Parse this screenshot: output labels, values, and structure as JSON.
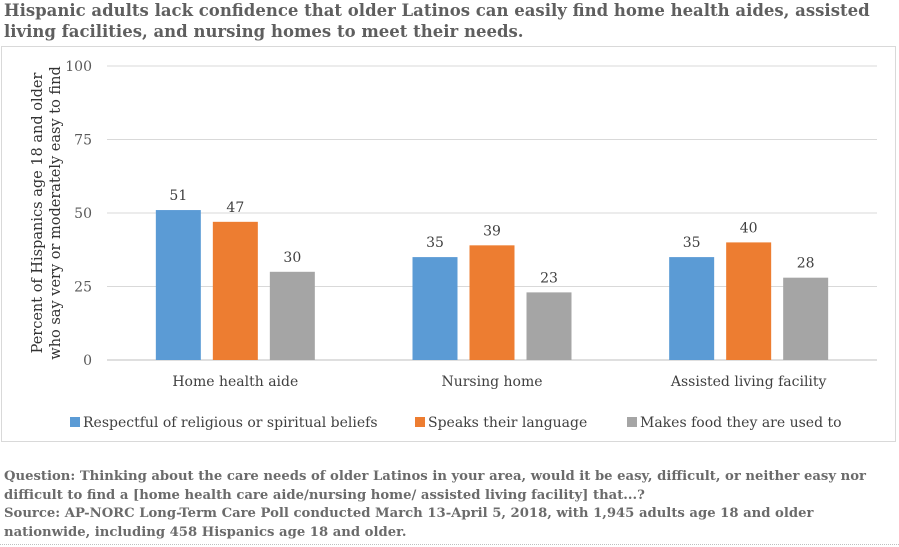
{
  "chart_data": {
    "type": "bar",
    "title": "Hispanic adults lack confidence that older Latinos can easily find home health aides, assisted living facilities, and nursing homes to meet their needs.",
    "ylabel_line1": "Percent of Hispanics age 18 and older",
    "ylabel_line2": "who say very or moderately easy to find",
    "categories": [
      "Home health aide",
      "Nursing home",
      "Assisted living facility"
    ],
    "series": [
      {
        "name": "Respectful of religious or spiritual beliefs",
        "values": [
          51,
          35,
          35
        ],
        "color": "#5b9bd5"
      },
      {
        "name": "Speaks their language",
        "values": [
          47,
          39,
          40
        ],
        "color": "#ed7d31"
      },
      {
        "name": "Makes food they are used to",
        "values": [
          30,
          23,
          28
        ],
        "color": "#a5a5a5"
      }
    ],
    "ylim": [
      0,
      100
    ],
    "yticks": [
      0,
      25,
      50,
      75,
      100
    ],
    "grid": true,
    "legend": "bottom"
  },
  "notes": {
    "question": "Question: Thinking about the care needs of older Latinos in your area, would it be easy, difficult, or neither easy nor difficult to find a [home health care aide/nursing home/ assisted living facility] that...?",
    "source": "Source: AP-NORC Long-Term Care Poll conducted March 13-April 5, 2018, with 1,945 adults age 18 and older nationwide, including 458 Hispanics age 18 and older."
  }
}
